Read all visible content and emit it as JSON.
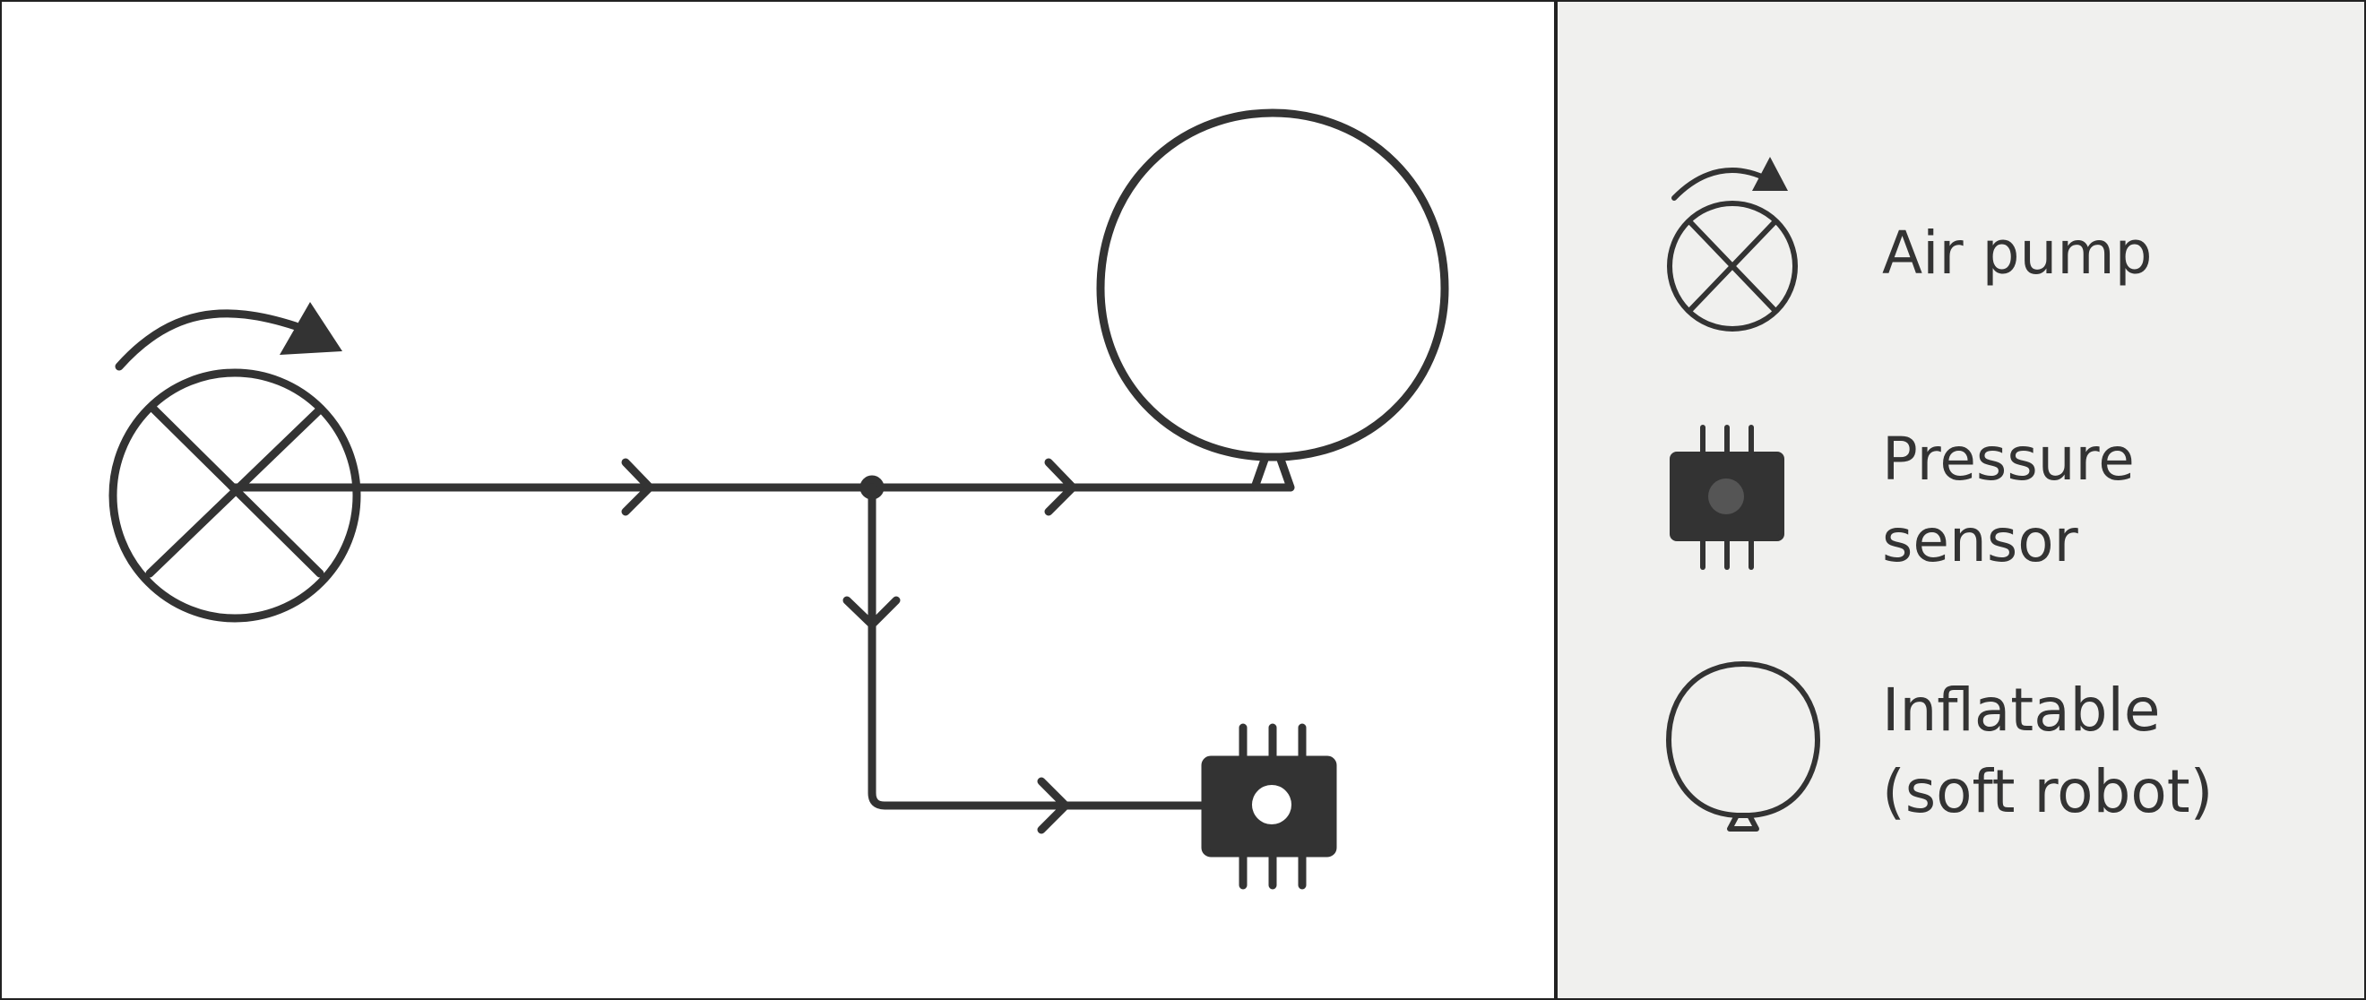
{
  "colors": {
    "stroke": "#333333",
    "canvas_background": "#ffffff",
    "legend_background": "#f0f0ee",
    "sensor_dot_fill": "#ffffff",
    "legend_sensor_dot_fill": "#555555"
  },
  "diagram": {
    "components": [
      {
        "name": "air-pump",
        "icon": "air-pump-icon"
      },
      {
        "name": "pressure-sensor",
        "icon": "pressure-sensor-icon"
      },
      {
        "name": "inflatable",
        "icon": "inflatable-icon"
      }
    ],
    "connections": [
      {
        "from": "air-pump",
        "to": "junction"
      },
      {
        "from": "junction",
        "to": "inflatable"
      },
      {
        "from": "junction",
        "to": "pressure-sensor"
      }
    ]
  },
  "legend": {
    "items": [
      {
        "icon": "air-pump-icon",
        "lines": [
          "Air pump"
        ]
      },
      {
        "icon": "pressure-sensor-icon",
        "lines": [
          "Pressure",
          "sensor"
        ]
      },
      {
        "icon": "inflatable-icon",
        "lines": [
          "Inflatable",
          "(soft robot)"
        ]
      }
    ]
  }
}
